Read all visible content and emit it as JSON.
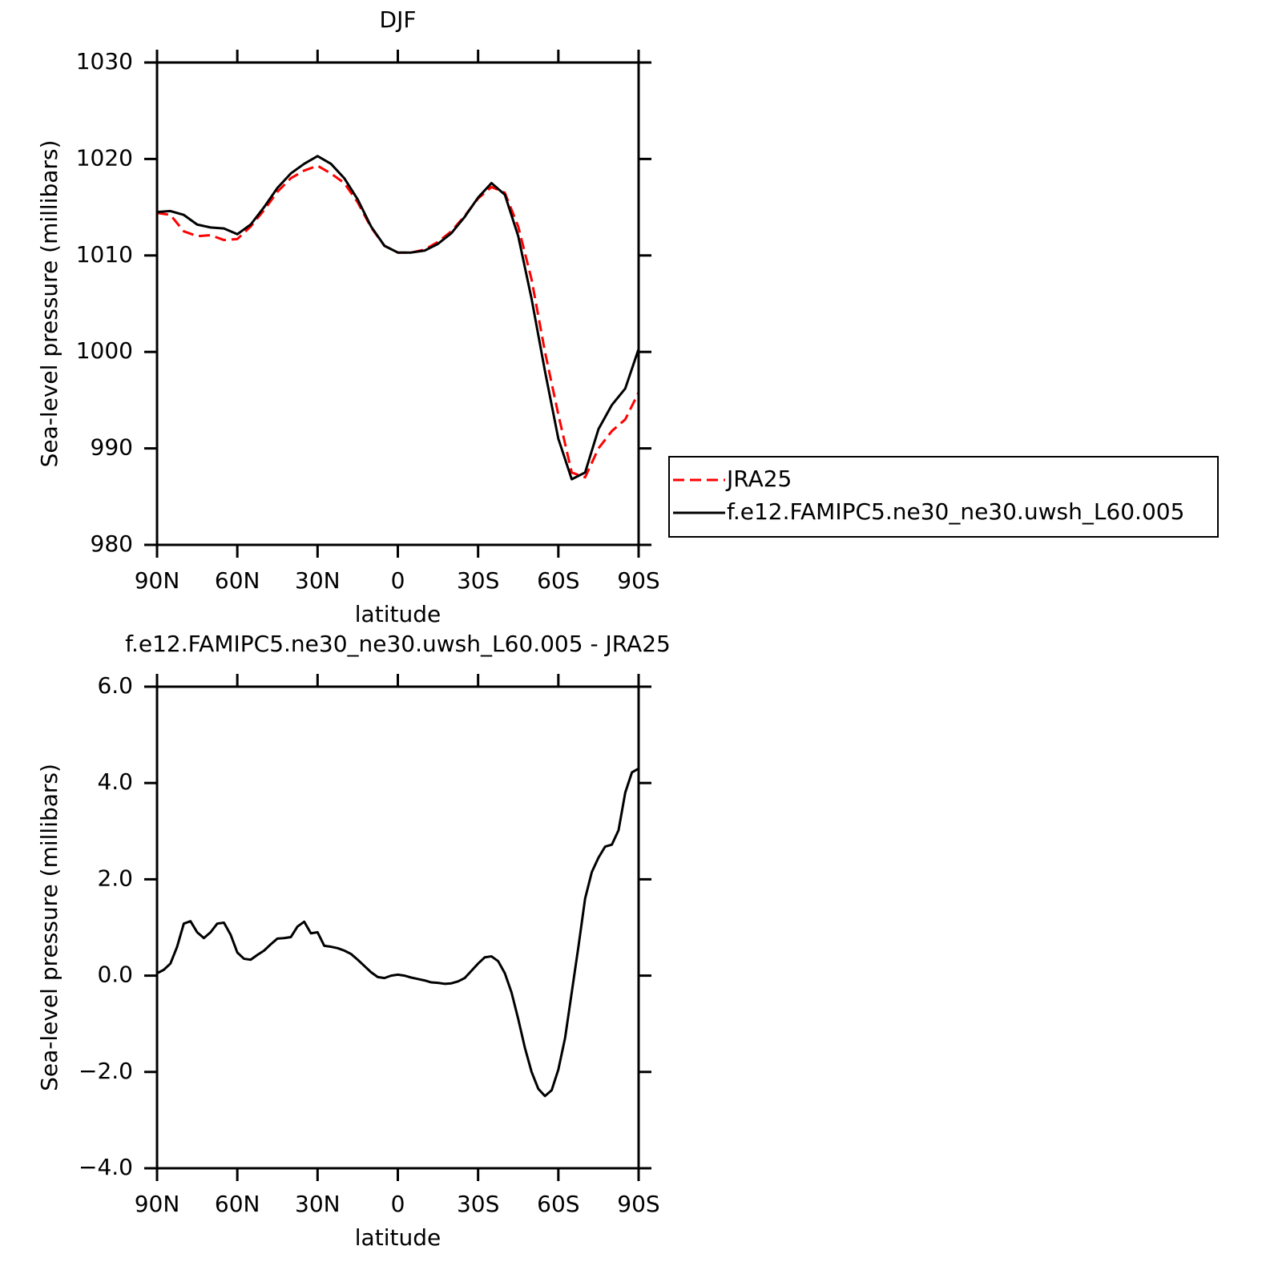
{
  "chart_data": [
    {
      "type": "line",
      "title": "DJF",
      "xlabel": "latitude",
      "ylabel": "Sea-level pressure (millibars)",
      "x": [
        90,
        85,
        80,
        75,
        70,
        65,
        60,
        55,
        50,
        45,
        40,
        35,
        30,
        25,
        20,
        15,
        10,
        5,
        0,
        -5,
        -10,
        -15,
        -20,
        -25,
        -30,
        -35,
        -40,
        -45,
        -50,
        -55,
        -60,
        -65,
        -70,
        -75,
        -80,
        -85,
        -90
      ],
      "series": [
        {
          "name": "JRA25",
          "color": "#ff0000",
          "line_style": "dashed",
          "values": [
            1014.4,
            1014.2,
            1012.5,
            1012.0,
            1012.1,
            1011.6,
            1011.7,
            1013.0,
            1014.7,
            1016.6,
            1018.0,
            1018.8,
            1019.3,
            1018.5,
            1017.5,
            1015.5,
            1012.9,
            1011.0,
            1010.3,
            1010.3,
            1010.6,
            1011.4,
            1012.5,
            1014.1,
            1015.9,
            1017.1,
            1016.5,
            1013.0,
            1007.5,
            1000.0,
            993.5,
            987.5,
            987.0,
            990.0,
            991.8,
            993.0,
            995.8
          ]
        },
        {
          "name": "f.e12.FAMIPC5.ne30_ne30.uwsh_L60.005",
          "color": "#000000",
          "line_style": "solid",
          "values": [
            1014.5,
            1014.6,
            1014.2,
            1013.2,
            1012.9,
            1012.8,
            1012.2,
            1013.2,
            1015.0,
            1017.0,
            1018.5,
            1019.5,
            1020.3,
            1019.5,
            1018.0,
            1015.8,
            1013.0,
            1011.0,
            1010.3,
            1010.3,
            1010.5,
            1011.2,
            1012.3,
            1014.0,
            1016.0,
            1017.5,
            1016.3,
            1012.0,
            1005.5,
            998.0,
            991.0,
            986.8,
            987.5,
            992.0,
            994.5,
            996.2,
            1000.3
          ]
        }
      ],
      "xlim": [
        90,
        -90
      ],
      "xticks": [
        {
          "value": 90,
          "label": "90N"
        },
        {
          "value": 60,
          "label": "60N"
        },
        {
          "value": 30,
          "label": "30N"
        },
        0,
        {
          "value": -30,
          "label": "30S"
        },
        {
          "value": -60,
          "label": "60S"
        },
        {
          "value": -90,
          "label": "90S"
        }
      ],
      "ylim": [
        980,
        1030
      ],
      "yticks": [
        980,
        990,
        1000,
        1010,
        1020,
        1030
      ],
      "legend": "right"
    },
    {
      "type": "line",
      "title": "f.e12.FAMIPC5.ne30_ne30.uwsh_L60.005 - JRA25",
      "xlabel": "latitude",
      "ylabel": "Sea-level pressure (millibars)",
      "x": [
        90,
        87.5,
        85,
        82.5,
        80,
        77.5,
        75,
        72.5,
        70,
        67.5,
        65,
        62.5,
        60,
        57.5,
        55,
        52.5,
        50,
        47.5,
        45,
        42.5,
        40,
        37.5,
        35,
        32.5,
        30,
        27.5,
        25,
        22.5,
        20,
        17.5,
        15,
        12.5,
        10,
        7.5,
        5,
        2.5,
        0,
        -2.5,
        -5,
        -7.5,
        -10,
        -12.5,
        -15,
        -17.5,
        -20,
        -22.5,
        -25,
        -27.5,
        -30,
        -32.5,
        -35,
        -37.5,
        -40,
        -42.5,
        -45,
        -47.5,
        -50,
        -52.5,
        -55,
        -57.5,
        -60,
        -62.5,
        -65,
        -67.5,
        -70,
        -72.5,
        -75,
        -77.5,
        -80,
        -82.5,
        -85,
        -87.5,
        -90
      ],
      "series": [
        {
          "color": "#000000",
          "line_style": "solid",
          "values": [
            0.05,
            0.12,
            0.25,
            0.6,
            1.08,
            1.13,
            0.9,
            0.78,
            0.9,
            1.08,
            1.1,
            0.85,
            0.48,
            0.35,
            0.33,
            0.43,
            0.52,
            0.65,
            0.77,
            0.78,
            0.8,
            1.02,
            1.12,
            0.88,
            0.9,
            0.62,
            0.6,
            0.57,
            0.52,
            0.45,
            0.33,
            0.2,
            0.07,
            -0.03,
            -0.05,
            0.0,
            0.02,
            0.0,
            -0.04,
            -0.07,
            -0.1,
            -0.14,
            -0.15,
            -0.17,
            -0.16,
            -0.12,
            -0.05,
            0.1,
            0.25,
            0.38,
            0.4,
            0.3,
            0.05,
            -0.35,
            -0.9,
            -1.5,
            -2.0,
            -2.35,
            -2.5,
            -2.38,
            -1.95,
            -1.3,
            -0.35,
            0.6,
            1.6,
            2.15,
            2.45,
            2.68,
            2.72,
            3.02,
            3.8,
            4.22,
            4.3
          ]
        }
      ],
      "xlim": [
        90,
        -90
      ],
      "xticks": [
        {
          "value": 90,
          "label": "90N"
        },
        {
          "value": 60,
          "label": "60N"
        },
        {
          "value": 30,
          "label": "30N"
        },
        0,
        {
          "value": -30,
          "label": "30S"
        },
        {
          "value": -60,
          "label": "60S"
        },
        {
          "value": -90,
          "label": "90S"
        }
      ],
      "ylim": [
        -4,
        6
      ],
      "yticks": [
        {
          "value": -4,
          "label": "−4.0"
        },
        {
          "value": -2,
          "label": "−2.0"
        },
        {
          "value": 0,
          "label": "0.0"
        },
        {
          "value": 2,
          "label": "2.0"
        },
        {
          "value": 4,
          "label": "4.0"
        },
        {
          "value": 6,
          "label": "6.0"
        }
      ]
    }
  ]
}
